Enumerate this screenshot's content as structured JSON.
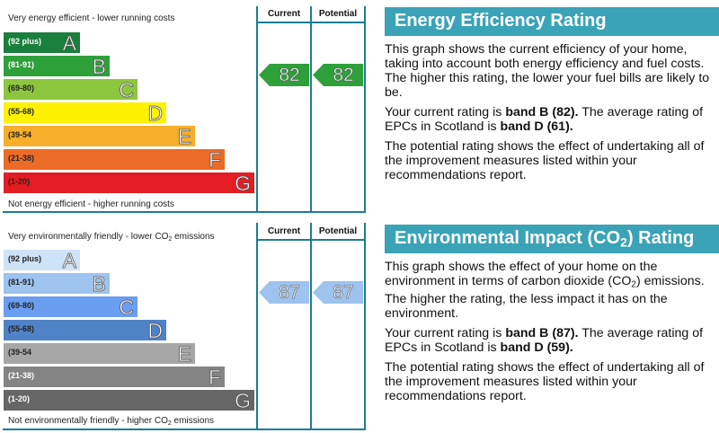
{
  "chart_data": [
    {
      "type": "bar",
      "title": "Energy Efficiency Rating",
      "top_label": "Very energy efficient - lower running costs",
      "bottom_label": "Not energy efficient - higher running costs",
      "columns": [
        "Current",
        "Potential"
      ],
      "bands": [
        {
          "range": "(92 plus)",
          "letter": "A",
          "color": "#1a7f3c",
          "range_color": "#ffffff"
        },
        {
          "range": "(81-91)",
          "letter": "B",
          "color": "#2ea03a",
          "range_color": "#ffffff"
        },
        {
          "range": "(69-80)",
          "letter": "C",
          "color": "#8cc63e",
          "range_color": "#222222"
        },
        {
          "range": "(55-68)",
          "letter": "D",
          "color": "#fff200",
          "range_color": "#222222"
        },
        {
          "range": "(39-54",
          "letter": "E",
          "color": "#f7ae2a",
          "range_color": "#222222"
        },
        {
          "range": "(21-38)",
          "letter": "F",
          "color": "#ec6b26",
          "range_color": "#222222"
        },
        {
          "range": "(1-20)",
          "letter": "G",
          "color": "#e31d23",
          "range_color": "#222222"
        }
      ],
      "current": {
        "value": 82,
        "band": "B",
        "color": "#2ea03a"
      },
      "potential": {
        "value": 82,
        "band": "B",
        "color": "#2ea03a"
      }
    },
    {
      "type": "bar",
      "title": "Environmental Impact (CO2) Rating",
      "top_label": "Very environmentally friendly - lower CO2 emissions",
      "bottom_label": "Not environmentally friendly - higher CO2 emissions",
      "columns": [
        "Current",
        "Potential"
      ],
      "bands": [
        {
          "range": "(92 plus)",
          "letter": "A",
          "color": "#cfe3f6",
          "range_color": "#222222"
        },
        {
          "range": "(81-91)",
          "letter": "B",
          "color": "#9dc3ee",
          "range_color": "#222222"
        },
        {
          "range": "(69-80)",
          "letter": "C",
          "color": "#6a9ef0",
          "range_color": "#222222"
        },
        {
          "range": "(55-68)",
          "letter": "D",
          "color": "#4f82c6",
          "range_color": "#222222"
        },
        {
          "range": "(39-54",
          "letter": "E",
          "color": "#a6a6a6",
          "range_color": "#222222"
        },
        {
          "range": "(21-38)",
          "letter": "F",
          "color": "#848484",
          "range_color": "#ffffff"
        },
        {
          "range": "(1-20)",
          "letter": "G",
          "color": "#666666",
          "range_color": "#ffffff"
        }
      ],
      "current": {
        "value": 87,
        "band": "B",
        "color": "#9dc3ee"
      },
      "potential": {
        "value": 87,
        "band": "B",
        "color": "#9dc3ee"
      }
    }
  ],
  "energy_panel": {
    "title": "Energy Efficiency Rating",
    "p1": "This graph shows the current efficiency of your home, taking into account both energy efficiency and fuel costs. The higher this rating, the lower your fuel bills are likely to be.",
    "p2_a": "Your current rating is ",
    "p2_b": "band B (82).",
    "p2_c": " The average rating of EPCs in Scotland is ",
    "p2_d": "band D (61).",
    "p3": "The potential rating shows the effect of undertaking all of the improvement measures listed within your recommendations report."
  },
  "env_panel": {
    "title_a": "Environmental Impact (CO",
    "title_sub": "2",
    "title_b": ") Rating",
    "p1_a": "This graph shows the effect of your home on the environment in terms of carbon dioxide (CO",
    "p1_sub": "2",
    "p1_b": ") emissions. The higher the rating, the less impact it has on the environment.",
    "p2_a": "Your current rating is ",
    "p2_b": "band B (87).",
    "p2_c": " The average rating of EPCs in Scotland is ",
    "p2_d": "band D (59).",
    "p3": "The potential rating shows the effect of undertaking all of the improvement measures listed within your recommendations report."
  },
  "co2_labels": {
    "top_a": "Very environmentally friendly - lower CO",
    "top_sub": "2",
    "top_b": " emissions",
    "bottom_a": "Not environmentally friendly - higher CO",
    "bottom_sub": "2",
    "bottom_b": " emissions"
  }
}
